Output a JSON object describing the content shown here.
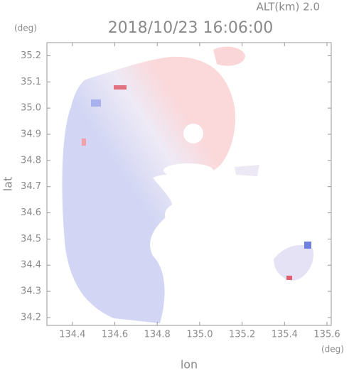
{
  "chart_data": {
    "type": "heatmap",
    "title": "2018/10/23 16:06:00",
    "subtitle": "ALT(km) 2.0",
    "y_unit": "(deg)",
    "x_unit": "(deg)",
    "x_label": "lon",
    "y_label": "lat",
    "xlim": [
      134.28,
      135.62
    ],
    "xticks": [
      134.4,
      134.6,
      134.8,
      {
        "value": 135,
        "label": "135.0"
      },
      135.2,
      135.4,
      135.6
    ],
    "ylim": [
      34.17,
      35.25
    ],
    "yticks": [
      34.2,
      34.3,
      34.4,
      34.5,
      34.6,
      34.7,
      34.8,
      34.9,
      {
        "value": 35,
        "label": "35.0"
      },
      35.1,
      35.2
    ]
  }
}
